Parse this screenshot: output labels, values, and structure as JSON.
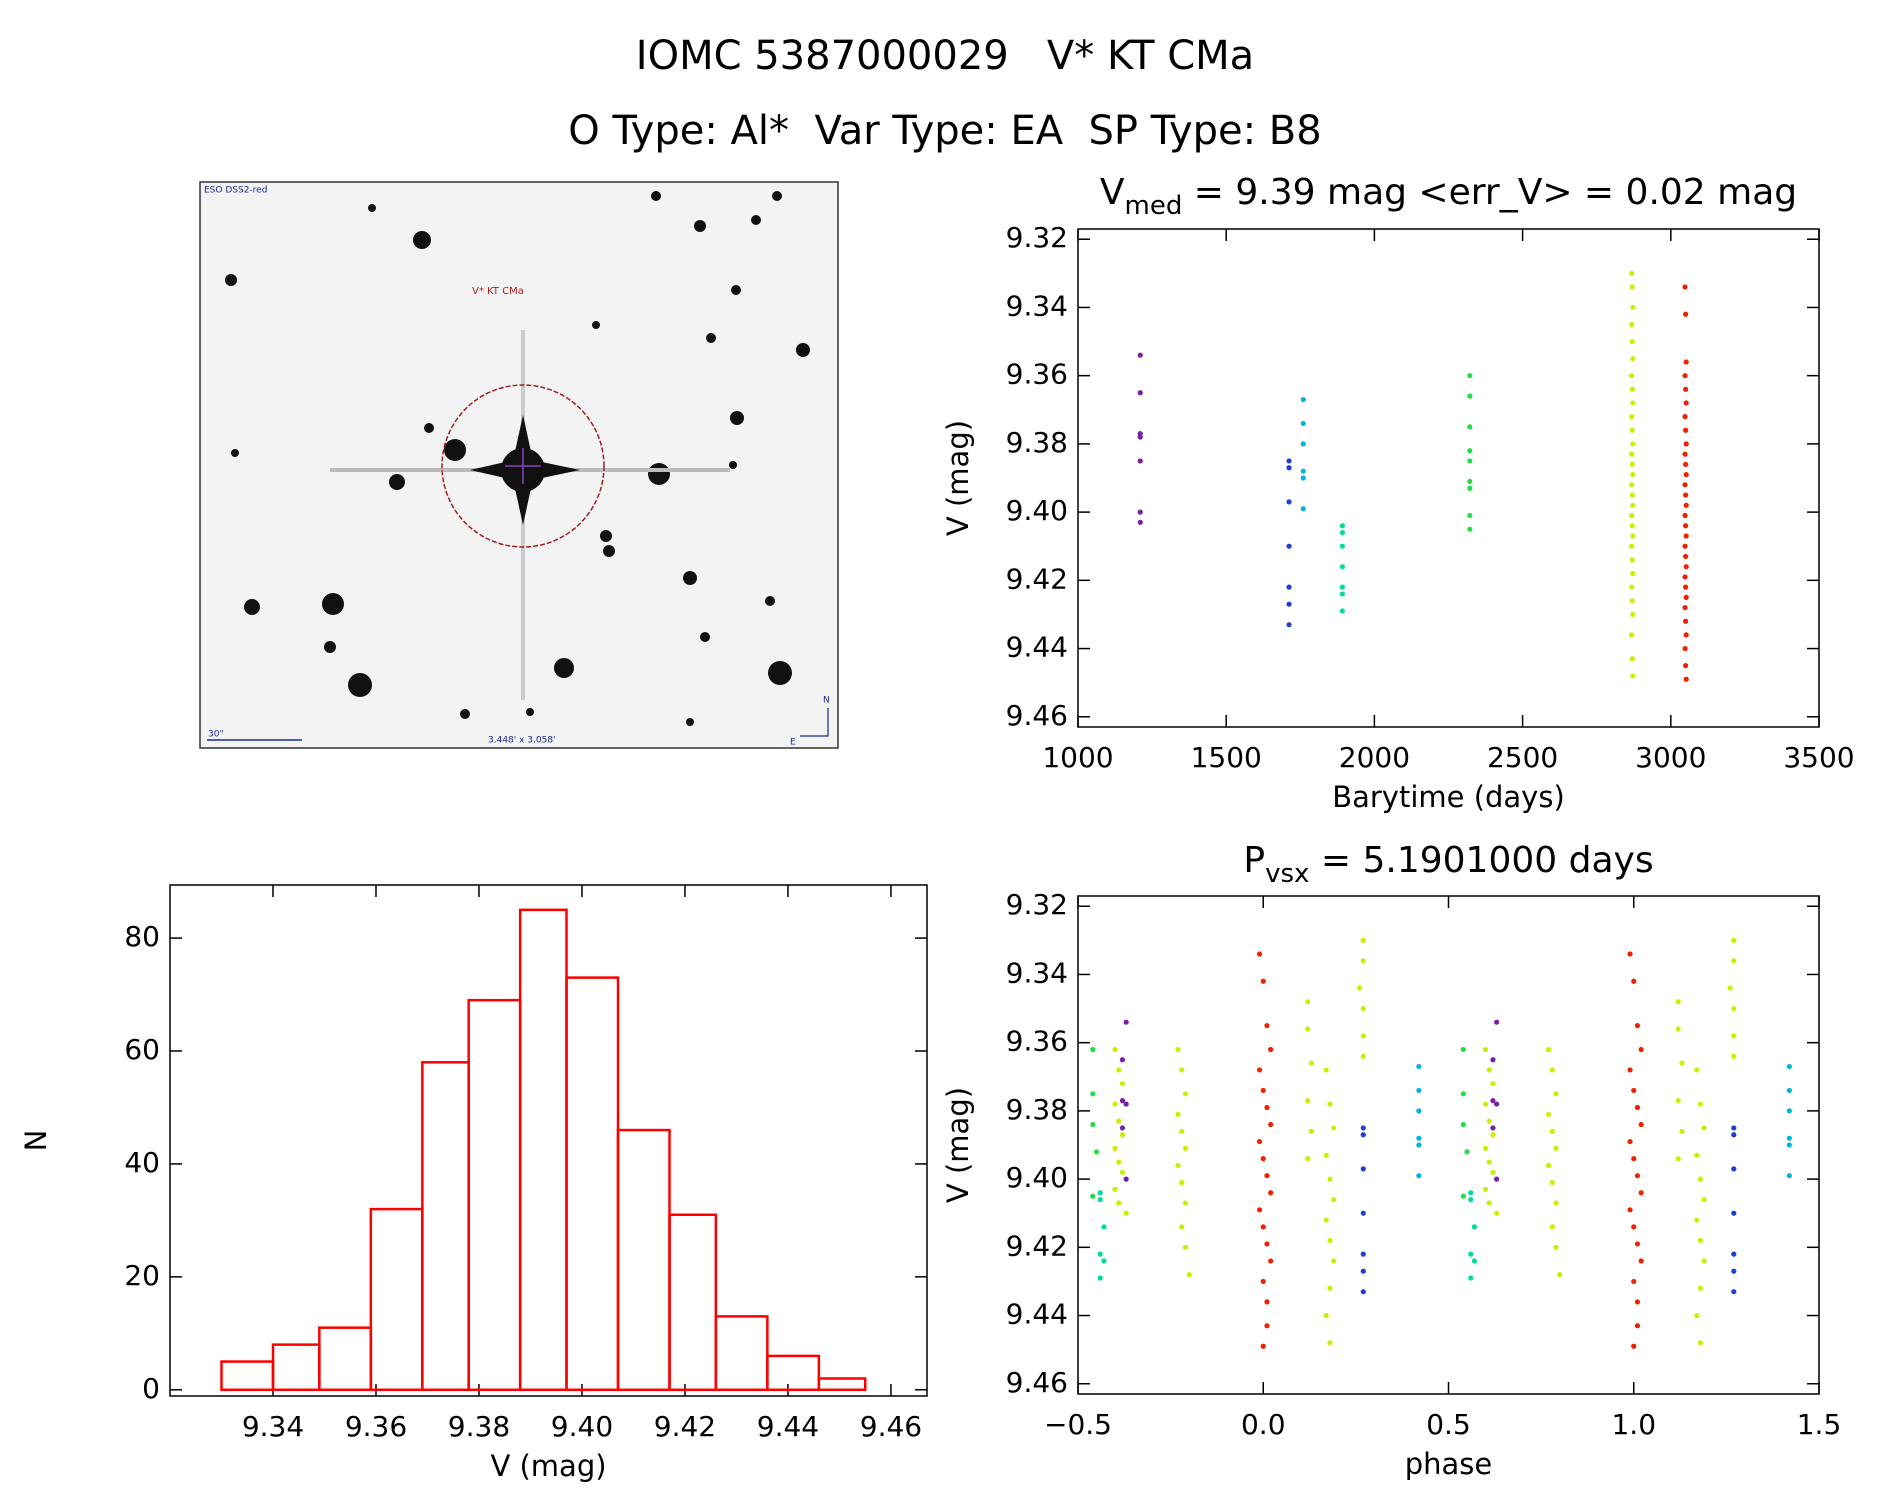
{
  "header": {
    "title": "IOMC 5387000029   V* KT CMa",
    "subtitle": "O Type: Al*  Var Type: EA  SP Type: B8"
  },
  "image_panel": {
    "survey": "ESO DSS2-red",
    "target": "V* KT CMa",
    "scale": "30\"",
    "fov": "3.448' x 3.058'",
    "north": "N",
    "east": "E"
  },
  "chart_data": [
    {
      "type": "scatter",
      "title": {
        "main": "V",
        "sub": "med",
        "rest": " = 9.39 mag <err_V> = 0.02 mag"
      },
      "xlabel": "Barytime (days)",
      "ylabel": "V (mag)",
      "xlim": [
        1000,
        3500
      ],
      "xticks": [
        1000,
        1500,
        2000,
        2500,
        3000,
        3500
      ],
      "ylim": [
        9.463,
        9.317
      ],
      "yticks": [
        9.32,
        9.34,
        9.36,
        9.38,
        {
          "value": 9.4,
          "label": "9.40"
        },
        9.42,
        9.44,
        9.46
      ],
      "series": [
        {
          "color": "#7a1fa0",
          "x": [
            1210,
            1210,
            1210,
            1210,
            1210,
            1210,
            1210
          ],
          "values": [
            9.354,
            9.365,
            9.377,
            9.378,
            9.385,
            9.4,
            9.403
          ]
        },
        {
          "color": "#1f3fd0",
          "x": [
            1712,
            1712,
            1712,
            1712,
            1712,
            1712,
            1712
          ],
          "values": [
            9.385,
            9.387,
            9.397,
            9.41,
            9.422,
            9.427,
            9.433
          ]
        },
        {
          "color": "#00b4e0",
          "x": [
            1760,
            1760,
            1760,
            1760,
            1760,
            1760
          ],
          "values": [
            9.367,
            9.374,
            9.38,
            9.388,
            9.39,
            9.399
          ]
        },
        {
          "color": "#00dd99",
          "x": [
            1892,
            1892,
            1892,
            1892,
            1892,
            1892,
            1892
          ],
          "values": [
            9.404,
            9.406,
            9.41,
            9.416,
            9.422,
            9.424,
            9.429
          ]
        },
        {
          "color": "#22dd44",
          "x": [
            2322,
            2322,
            2322,
            2322,
            2322,
            2322,
            2322,
            2322,
            2322
          ],
          "values": [
            9.36,
            9.366,
            9.375,
            9.382,
            9.385,
            9.391,
            9.393,
            9.401,
            9.405
          ]
        },
        {
          "color": "#ccee00",
          "x": [
            2868,
            2870,
            2872,
            2868,
            2870,
            2872,
            2868,
            2870,
            2872,
            2868,
            2870,
            2872,
            2868,
            2870,
            2872,
            2868,
            2870,
            2872,
            2868,
            2870,
            2872,
            2868,
            2870,
            2872,
            2868,
            2870,
            2872,
            2868,
            2870,
            2872
          ],
          "values": [
            9.33,
            9.334,
            9.34,
            9.345,
            9.35,
            9.355,
            9.36,
            9.364,
            9.368,
            9.372,
            9.376,
            9.38,
            9.383,
            9.386,
            9.389,
            9.392,
            9.395,
            9.398,
            9.401,
            9.404,
            9.407,
            9.41,
            9.414,
            9.418,
            9.422,
            9.426,
            9.43,
            9.436,
            9.443,
            9.448
          ]
        },
        {
          "color": "#ee2200",
          "x": [
            3048,
            3050,
            3052,
            3048,
            3050,
            3052,
            3048,
            3050,
            3052,
            3048,
            3050,
            3052,
            3048,
            3050,
            3052,
            3048,
            3050,
            3052,
            3048,
            3050,
            3052,
            3048,
            3050,
            3052,
            3048,
            3050,
            3052,
            3048,
            3050,
            3052
          ],
          "values": [
            9.334,
            9.342,
            9.356,
            9.36,
            9.364,
            9.368,
            9.372,
            9.376,
            9.38,
            9.383,
            9.386,
            9.389,
            9.392,
            9.395,
            9.398,
            9.401,
            9.404,
            9.407,
            9.41,
            9.413,
            9.416,
            9.419,
            9.422,
            9.425,
            9.428,
            9.432,
            9.436,
            9.44,
            9.445,
            9.449
          ]
        }
      ]
    },
    {
      "type": "scatter",
      "title": {
        "main": "P",
        "sub": "vsx",
        "rest": " = 5.1901000 days"
      },
      "xlabel": "phase",
      "ylabel": "V (mag)",
      "xlim": [
        -0.5,
        1.5
      ],
      "xticks": [
        {
          "value": -0.5,
          "label": "−0.5"
        },
        {
          "value": 0,
          "label": "0.0"
        },
        0.5,
        {
          "value": 1,
          "label": "1.0"
        },
        1.5
      ],
      "ylim": [
        9.463,
        9.317
      ],
      "yticks": [
        9.32,
        9.34,
        9.36,
        9.38,
        {
          "value": 9.4,
          "label": "9.40"
        },
        9.42,
        9.44,
        9.46
      ],
      "series": [
        {
          "color": "#22dd44",
          "x": [
            -0.46,
            -0.46,
            -0.46,
            -0.45,
            -0.46,
            0.54,
            0.54,
            0.54,
            0.55,
            0.54
          ],
          "values": [
            9.362,
            9.375,
            9.384,
            9.392,
            9.405,
            9.362,
            9.375,
            9.384,
            9.392,
            9.405
          ]
        },
        {
          "color": "#00dd99",
          "x": [
            -0.44,
            -0.44,
            -0.43,
            -0.44,
            -0.43,
            -0.44,
            0.56,
            0.56,
            0.57,
            0.56,
            0.57,
            0.56
          ],
          "values": [
            9.404,
            9.406,
            9.414,
            9.422,
            9.424,
            9.429,
            9.404,
            9.406,
            9.414,
            9.422,
            9.424,
            9.429
          ]
        },
        {
          "color": "#ccee00",
          "x": [
            -0.4,
            -0.39,
            -0.38,
            -0.4,
            -0.39,
            -0.38,
            -0.4,
            -0.39,
            -0.38,
            -0.4,
            -0.39,
            -0.37,
            -0.23,
            -0.22,
            -0.21,
            -0.23,
            -0.22,
            -0.21,
            -0.23,
            -0.22,
            -0.21,
            -0.22,
            -0.21,
            -0.2,
            0.12,
            0.12,
            0.13,
            0.12,
            0.13,
            0.12,
            0.17,
            0.18,
            0.19,
            0.17,
            0.18,
            0.19,
            0.17,
            0.18,
            0.19,
            0.18,
            0.17,
            0.18,
            0.27,
            0.27,
            0.26,
            0.27,
            0.27,
            0.27,
            0.6,
            0.61,
            0.62,
            0.6,
            0.61,
            0.62,
            0.6,
            0.61,
            0.62,
            0.6,
            0.61,
            0.63,
            0.77,
            0.78,
            0.79,
            0.77,
            0.78,
            0.79,
            0.77,
            0.78,
            0.79,
            0.78,
            0.79,
            0.8,
            1.12,
            1.12,
            1.13,
            1.12,
            1.13,
            1.12,
            1.17,
            1.18,
            1.19,
            1.17,
            1.18,
            1.19,
            1.17,
            1.18,
            1.19,
            1.18,
            1.17,
            1.18,
            1.27,
            1.27,
            1.26,
            1.27,
            1.27,
            1.27
          ],
          "values": [
            9.362,
            9.368,
            9.372,
            9.378,
            9.383,
            9.387,
            9.391,
            9.395,
            9.398,
            9.403,
            9.407,
            9.41,
            9.362,
            9.368,
            9.375,
            9.381,
            9.386,
            9.391,
            9.396,
            9.401,
            9.407,
            9.414,
            9.42,
            9.428,
            9.348,
            9.356,
            9.366,
            9.377,
            9.386,
            9.394,
            9.368,
            9.378,
            9.385,
            9.393,
            9.4,
            9.406,
            9.412,
            9.418,
            9.424,
            9.432,
            9.44,
            9.448,
            9.33,
            9.336,
            9.344,
            9.35,
            9.358,
            9.364,
            9.362,
            9.368,
            9.372,
            9.378,
            9.383,
            9.387,
            9.391,
            9.395,
            9.398,
            9.403,
            9.407,
            9.41,
            9.362,
            9.368,
            9.375,
            9.381,
            9.386,
            9.391,
            9.396,
            9.401,
            9.407,
            9.414,
            9.42,
            9.428,
            9.348,
            9.356,
            9.366,
            9.377,
            9.386,
            9.394,
            9.368,
            9.378,
            9.385,
            9.393,
            9.4,
            9.406,
            9.412,
            9.418,
            9.424,
            9.432,
            9.44,
            9.448,
            9.33,
            9.336,
            9.344,
            9.35,
            9.358,
            9.364
          ]
        },
        {
          "color": "#7a1fa0",
          "x": [
            -0.37,
            -0.38,
            -0.38,
            -0.37,
            -0.38,
            -0.37,
            0.63,
            0.62,
            0.62,
            0.63,
            0.62,
            0.63
          ],
          "values": [
            9.354,
            9.365,
            9.377,
            9.378,
            9.385,
            9.4,
            9.354,
            9.365,
            9.377,
            9.378,
            9.385,
            9.4
          ]
        },
        {
          "color": "#ee2200",
          "x": [
            -0.01,
            0,
            0.01,
            0.02,
            -0.01,
            0,
            0.01,
            0.02,
            -0.01,
            0,
            0.01,
            0.02,
            -0.01,
            0,
            0.01,
            0.02,
            0,
            0.01,
            0.01,
            0,
            0.99,
            1,
            1.01,
            1.02,
            0.99,
            1,
            1.01,
            1.02,
            0.99,
            1,
            1.01,
            1.02,
            0.99,
            1,
            1.01,
            1.02,
            1,
            1.01,
            1.01,
            1
          ],
          "values": [
            9.334,
            9.342,
            9.355,
            9.362,
            9.368,
            9.374,
            9.379,
            9.384,
            9.389,
            9.394,
            9.399,
            9.404,
            9.409,
            9.414,
            9.419,
            9.424,
            9.43,
            9.436,
            9.443,
            9.449,
            9.334,
            9.342,
            9.355,
            9.362,
            9.368,
            9.374,
            9.379,
            9.384,
            9.389,
            9.394,
            9.399,
            9.404,
            9.409,
            9.414,
            9.419,
            9.424,
            9.43,
            9.436,
            9.443,
            9.449
          ]
        },
        {
          "color": "#1f3fd0",
          "x": [
            0.27,
            0.27,
            0.27,
            0.27,
            0.27,
            0.27,
            0.27,
            1.27,
            1.27,
            1.27,
            1.27,
            1.27,
            1.27,
            1.27
          ],
          "values": [
            9.385,
            9.387,
            9.397,
            9.41,
            9.422,
            9.427,
            9.433,
            9.385,
            9.387,
            9.397,
            9.41,
            9.422,
            9.427,
            9.433
          ]
        },
        {
          "color": "#00b4e0",
          "x": [
            0.42,
            0.42,
            0.42,
            0.42,
            0.42,
            0.42,
            1.42,
            1.42,
            1.42,
            1.42,
            1.42,
            1.42
          ],
          "values": [
            9.367,
            9.374,
            9.38,
            9.388,
            9.39,
            9.399,
            9.367,
            9.374,
            9.38,
            9.388,
            9.39,
            9.399
          ]
        }
      ]
    },
    {
      "type": "histogram",
      "xlabel": "V (mag)",
      "ylabel": "N",
      "color": "#ff0000",
      "bins": [
        9.33,
        9.34,
        9.349,
        9.359,
        9.369,
        9.378,
        9.388,
        9.397,
        9.407,
        9.417,
        9.426,
        9.436,
        9.446,
        9.455
      ],
      "values": [
        5,
        8,
        11,
        32,
        58,
        69,
        85,
        73,
        46,
        31,
        13,
        6,
        2
      ],
      "xlim": [
        9.32,
        9.467
      ],
      "xticks": [
        9.34,
        9.36,
        9.38,
        {
          "value": 9.4,
          "label": "9.40"
        },
        9.42,
        9.44,
        9.46
      ],
      "ylim": [
        -1.1,
        89.4
      ],
      "yticks": [
        0,
        20,
        40,
        60,
        80
      ]
    }
  ]
}
